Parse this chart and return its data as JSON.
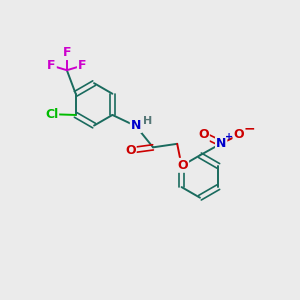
{
  "background_color": "#ebebeb",
  "bond_color": "#1a6b5e",
  "atom_colors": {
    "F": "#cc00cc",
    "Cl": "#00bb00",
    "N": "#0000cc",
    "O": "#cc0000",
    "H": "#557777",
    "C": "#1a6b5e",
    "plus": "#0000cc",
    "minus": "#cc0000"
  },
  "figsize": [
    3.0,
    3.0
  ],
  "dpi": 100
}
